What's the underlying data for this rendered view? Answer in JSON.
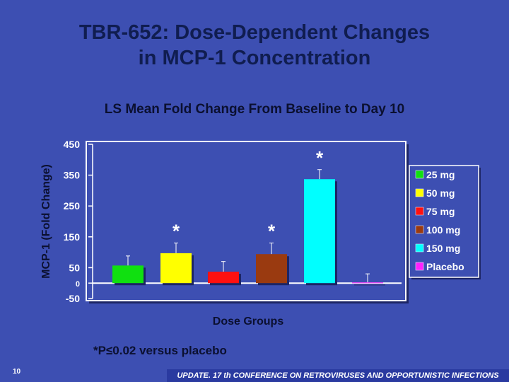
{
  "slide": {
    "title_line1": "TBR-652: Dose-Dependent Changes",
    "title_line2": "in MCP-1 Concentration",
    "page_number": "10",
    "footnote": "*P≤0.02 versus placebo",
    "banner": "UPDATE. 17 th CONFERENCE ON RETROVIRUSES AND OPPORTUNISTIC INFECTIONS"
  },
  "chart_data": {
    "type": "bar",
    "title": "LS Mean Fold Change From Baseline to Day 10",
    "xlabel": "Dose Groups",
    "ylabel": "MCP-1 (Fold Change)",
    "ylim": [
      -50,
      450
    ],
    "yticks": [
      -50,
      0,
      50,
      150,
      250,
      350,
      450
    ],
    "categories": [
      "25 mg",
      "50 mg",
      "75 mg",
      "100 mg",
      "150 mg",
      "Placebo"
    ],
    "values": [
      57,
      97,
      37,
      94,
      337,
      2
    ],
    "error_upper": [
      88,
      130,
      70,
      130,
      368,
      30
    ],
    "significant": [
      false,
      true,
      false,
      true,
      true,
      false
    ],
    "significance_marker": "*",
    "colors": [
      "#10e010",
      "#ffff00",
      "#ff1010",
      "#9a3a10",
      "#00ffff",
      "#ff20ff"
    ],
    "legend_position": "right"
  }
}
